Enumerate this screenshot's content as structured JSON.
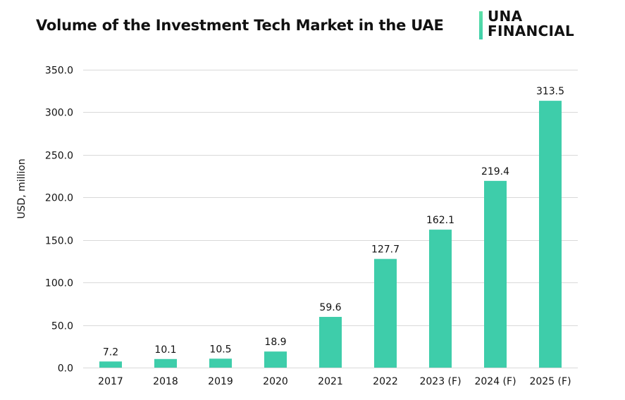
{
  "header": {
    "title": "Volume of the Investment Tech Market in the UAE",
    "logo_line1": "UNA",
    "logo_line2": "FINANCIAL"
  },
  "colors": {
    "bar": "#3ecdaa",
    "grid": "#d9d9d9",
    "logo_accent": "#4fd9a8",
    "text": "#111111"
  },
  "chart_data": {
    "type": "bar",
    "title": "Volume of the Investment Tech Market in the UAE",
    "xlabel": "",
    "ylabel": "USD, million",
    "categories": [
      "2017",
      "2018",
      "2019",
      "2020",
      "2021",
      "2022",
      "2023 (F)",
      "2024 (F)",
      "2025 (F)"
    ],
    "values": [
      7.2,
      10.1,
      10.5,
      18.9,
      59.6,
      127.7,
      162.1,
      219.4,
      313.5
    ],
    "value_labels": [
      "7.2",
      "10.1",
      "10.5",
      "18.9",
      "59.6",
      "127.7",
      "162.1",
      "219.4",
      "313.5"
    ],
    "ylim": [
      0,
      350
    ],
    "yticks": [
      0,
      50,
      100,
      150,
      200,
      250,
      300,
      350
    ],
    "ytick_labels": [
      "0.0",
      "50.0",
      "100.0",
      "150.0",
      "200.0",
      "250.0",
      "300.0",
      "350.0"
    ],
    "grid": true,
    "legend": "none"
  }
}
